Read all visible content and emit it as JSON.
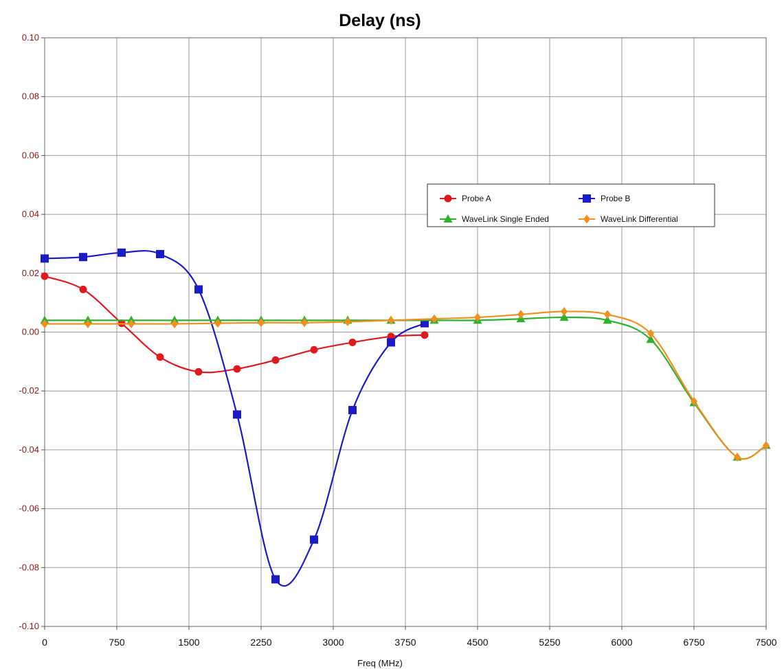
{
  "chart_data": {
    "type": "line",
    "title": "Delay (ns)",
    "xlabel": "Freq (MHz)",
    "ylabel": "",
    "xlim": [
      0,
      7500
    ],
    "ylim": [
      -0.1,
      0.1
    ],
    "x_ticks": [
      "0",
      "750",
      "1500",
      "2250",
      "3000",
      "3750",
      "4500",
      "5250",
      "6000",
      "6750",
      "7500"
    ],
    "y_ticks": [
      "0.10",
      "0.08",
      "0.06",
      "0.04",
      "0.02",
      "0.00",
      "-0.02",
      "-0.04",
      "-0.06",
      "-0.08",
      "-0.10"
    ],
    "grid": true,
    "legend_position": "right",
    "series": [
      {
        "name": "Probe A",
        "color": "#e0191e",
        "marker": "circle",
        "points": [
          [
            0,
            0.019
          ],
          [
            400,
            0.0145
          ],
          [
            800,
            0.003
          ],
          [
            1200,
            -0.0085
          ],
          [
            1600,
            -0.0135
          ],
          [
            2000,
            -0.0125
          ],
          [
            2400,
            -0.0095
          ],
          [
            2800,
            -0.006
          ],
          [
            3200,
            -0.0035
          ],
          [
            3600,
            -0.0015
          ],
          [
            3950,
            -0.001
          ]
        ]
      },
      {
        "name": "Probe B",
        "color": "#1b1bc8",
        "marker": "square",
        "points": [
          [
            0,
            0.025
          ],
          [
            400,
            0.0255
          ],
          [
            800,
            0.027
          ],
          [
            1200,
            0.0265
          ],
          [
            1600,
            0.0145
          ],
          [
            2000,
            -0.028
          ],
          [
            2400,
            -0.084
          ],
          [
            2800,
            -0.0705
          ],
          [
            3200,
            -0.0265
          ],
          [
            3600,
            -0.0035
          ],
          [
            3950,
            0.003
          ]
        ]
      },
      {
        "name": "WaveLink Single Ended",
        "color": "#2fb12f",
        "marker": "triangle",
        "points": [
          [
            0,
            0.004
          ],
          [
            450,
            0.004
          ],
          [
            900,
            0.004
          ],
          [
            1350,
            0.004
          ],
          [
            1800,
            0.004
          ],
          [
            2250,
            0.004
          ],
          [
            2700,
            0.004
          ],
          [
            3150,
            0.004
          ],
          [
            3600,
            0.004
          ],
          [
            4050,
            0.004
          ],
          [
            4500,
            0.004
          ],
          [
            4950,
            0.0045
          ],
          [
            5400,
            0.005
          ],
          [
            5850,
            0.004
          ],
          [
            6300,
            -0.0025
          ],
          [
            6750,
            -0.024
          ],
          [
            7200,
            -0.0425
          ],
          [
            7500,
            -0.0385
          ]
        ]
      },
      {
        "name": "WaveLink Differential",
        "color": "#f0901f",
        "marker": "diamond",
        "points": [
          [
            0,
            0.0028
          ],
          [
            450,
            0.0028
          ],
          [
            900,
            0.0028
          ],
          [
            1350,
            0.0028
          ],
          [
            1800,
            0.003
          ],
          [
            2250,
            0.0032
          ],
          [
            2700,
            0.0032
          ],
          [
            3150,
            0.0035
          ],
          [
            3600,
            0.004
          ],
          [
            4050,
            0.0045
          ],
          [
            4500,
            0.005
          ],
          [
            4950,
            0.006
          ],
          [
            5400,
            0.007
          ],
          [
            5850,
            0.006
          ],
          [
            6300,
            -0.0005
          ],
          [
            6750,
            -0.0235
          ],
          [
            7200,
            -0.0425
          ],
          [
            7500,
            -0.0385
          ]
        ]
      }
    ]
  }
}
